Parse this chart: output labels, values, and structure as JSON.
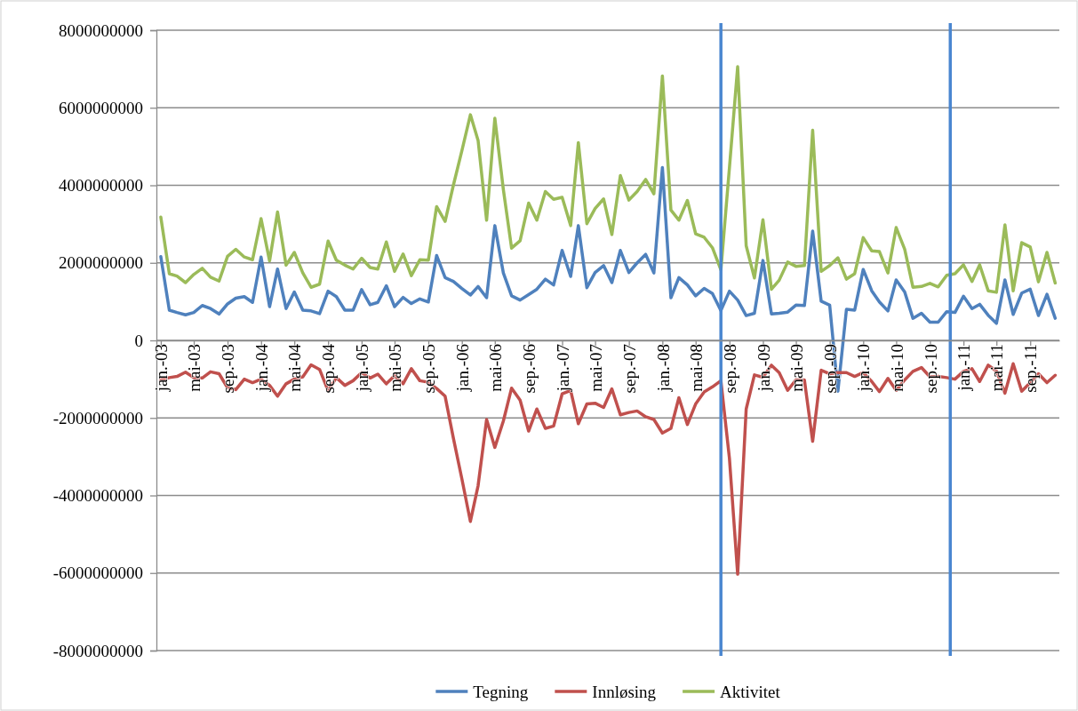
{
  "chart_data": {
    "type": "line",
    "x": [
      "2003-01",
      "2003-02",
      "2003-03",
      "2003-04",
      "2003-05",
      "2003-06",
      "2003-07",
      "2003-08",
      "2003-09",
      "2003-10",
      "2003-11",
      "2003-12",
      "2004-01",
      "2004-02",
      "2004-03",
      "2004-04",
      "2004-05",
      "2004-06",
      "2004-07",
      "2004-08",
      "2004-09",
      "2004-10",
      "2004-11",
      "2004-12",
      "2005-01",
      "2005-02",
      "2005-03",
      "2005-04",
      "2005-05",
      "2005-06",
      "2005-07",
      "2005-08",
      "2005-09",
      "2005-10",
      "2005-11",
      "2005-12",
      "2006-01",
      "2006-02",
      "2006-03",
      "2006-04",
      "2006-05",
      "2006-06",
      "2006-07",
      "2006-08",
      "2006-09",
      "2006-10",
      "2006-11",
      "2006-12",
      "2007-01",
      "2007-02",
      "2007-03",
      "2007-04",
      "2007-05",
      "2007-06",
      "2007-07",
      "2007-08",
      "2007-09",
      "2007-10",
      "2007-11",
      "2007-12",
      "2008-01",
      "2008-02",
      "2008-03",
      "2008-04",
      "2008-05",
      "2008-06",
      "2008-07",
      "2008-08",
      "2008-09",
      "2008-10",
      "2008-11",
      "2008-12",
      "2009-01",
      "2009-02",
      "2009-03",
      "2009-04",
      "2009-05",
      "2009-06",
      "2009-07",
      "2009-08",
      "2009-09",
      "2009-10",
      "2009-11",
      "2009-12",
      "2010-01",
      "2010-02",
      "2010-03",
      "2010-04",
      "2010-05",
      "2010-06",
      "2010-07",
      "2010-08",
      "2010-09",
      "2010-10",
      "2010-11",
      "2010-12",
      "2011-01",
      "2011-02",
      "2011-03",
      "2011-04",
      "2011-05",
      "2011-06",
      "2011-07",
      "2011-08",
      "2011-09",
      "2011-10",
      "2011-11",
      "2011-12"
    ],
    "series": [
      {
        "name": "Tegning",
        "color": "#4f81bd",
        "values": [
          2160000000.0,
          780000000.0,
          720000000.0,
          660000000.0,
          720000000.0,
          900000000.0,
          820000000.0,
          680000000.0,
          940000000.0,
          1090000000.0,
          1130000000.0,
          980000000.0,
          2150000000.0,
          870000000.0,
          1840000000.0,
          820000000.0,
          1250000000.0,
          780000000.0,
          760000000.0,
          690000000.0,
          1270000000.0,
          1130000000.0,
          780000000.0,
          780000000.0,
          1310000000.0,
          920000000.0,
          980000000.0,
          1410000000.0,
          870000000.0,
          1110000000.0,
          950000000.0,
          1070000000.0,
          990000000.0,
          2190000000.0,
          1620000000.0,
          1520000000.0,
          1340000000.0,
          1170000000.0,
          1390000000.0,
          1100000000.0,
          2960000000.0,
          1740000000.0,
          1150000000.0,
          1040000000.0,
          1180000000.0,
          1320000000.0,
          1580000000.0,
          1430000000.0,
          2320000000.0,
          1650000000.0,
          2960000000.0,
          1360000000.0,
          1750000000.0,
          1930000000.0,
          1490000000.0,
          2320000000.0,
          1750000000.0,
          2000000000.0,
          2220000000.0,
          1740000000.0,
          4460000000.0,
          1100000000.0,
          1620000000.0,
          1430000000.0,
          1150000000.0,
          1340000000.0,
          1210000000.0,
          770000000.0,
          1270000000.0,
          1040000000.0,
          640000000.0,
          700000000.0,
          2060000000.0,
          680000000.0,
          700000000.0,
          730000000.0,
          910000000.0,
          900000000.0,
          2820000000.0,
          1010000000.0,
          910000000.0,
          -1310000000.0,
          800000000.0,
          780000000.0,
          1830000000.0,
          1280000000.0,
          990000000.0,
          760000000.0,
          1560000000.0,
          1250000000.0,
          570000000.0,
          700000000.0,
          470000000.0,
          470000000.0,
          740000000.0,
          720000000.0,
          1140000000.0,
          820000000.0,
          930000000.0,
          650000000.0,
          440000000.0,
          1560000000.0,
          670000000.0,
          1220000000.0,
          1320000000.0,
          640000000.0,
          1190000000.0,
          570000000.0
        ]
      },
      {
        "name": "Innløsing",
        "color": "#c0504d",
        "values": [
          -1020000000.0,
          -960000000.0,
          -930000000.0,
          -820000000.0,
          -960000000.0,
          -970000000.0,
          -810000000.0,
          -860000000.0,
          -1220000000.0,
          -1270000000.0,
          -1000000000.0,
          -1090000000.0,
          -1000000000.0,
          -1160000000.0,
          -1440000000.0,
          -1120000000.0,
          -1000000000.0,
          -940000000.0,
          -630000000.0,
          -750000000.0,
          -1300000000.0,
          -960000000.0,
          -1160000000.0,
          -1040000000.0,
          -830000000.0,
          -970000000.0,
          -870000000.0,
          -1120000000.0,
          -910000000.0,
          -1120000000.0,
          -730000000.0,
          -1040000000.0,
          -1080000000.0,
          -1240000000.0,
          -1440000000.0,
          -2520000000.0,
          -3570000000.0,
          -4670000000.0,
          -3750000000.0,
          -2040000000.0,
          -2760000000.0,
          -2080000000.0,
          -1230000000.0,
          -1540000000.0,
          -2340000000.0,
          -1770000000.0,
          -2270000000.0,
          -2210000000.0,
          -1380000000.0,
          -1290000000.0,
          -2150000000.0,
          -1640000000.0,
          -1620000000.0,
          -1730000000.0,
          -1250000000.0,
          -1920000000.0,
          -1860000000.0,
          -1820000000.0,
          -1970000000.0,
          -2040000000.0,
          -2390000000.0,
          -2270000000.0,
          -1480000000.0,
          -2170000000.0,
          -1640000000.0,
          -1330000000.0,
          -1200000000.0,
          -1040000000.0,
          -3040000000.0,
          -6030000000.0,
          -1770000000.0,
          -890000000.0,
          -950000000.0,
          -640000000.0,
          -830000000.0,
          -1290000000.0,
          -1020000000.0,
          -1020000000.0,
          -2600000000.0,
          -770000000.0,
          -860000000.0,
          -830000000.0,
          -830000000.0,
          -930000000.0,
          -830000000.0,
          -1060000000.0,
          -1320000000.0,
          -980000000.0,
          -1290000000.0,
          -1020000000.0,
          -800000000.0,
          -700000000.0,
          -940000000.0,
          -930000000.0,
          -960000000.0,
          -1000000000.0,
          -800000000.0,
          -730000000.0,
          -1060000000.0,
          -640000000.0,
          -790000000.0,
          -1360000000.0,
          -600000000.0,
          -1310000000.0,
          -1090000000.0,
          -860000000.0,
          -1090000000.0,
          -900000000.0
        ]
      },
      {
        "name": "Aktivitet",
        "color": "#9bbb59",
        "values": [
          3180000000.0,
          1720000000.0,
          1660000000.0,
          1490000000.0,
          1700000000.0,
          1860000000.0,
          1630000000.0,
          1530000000.0,
          2170000000.0,
          2350000000.0,
          2150000000.0,
          2080000000.0,
          3140000000.0,
          2050000000.0,
          3310000000.0,
          1940000000.0,
          2270000000.0,
          1740000000.0,
          1370000000.0,
          1450000000.0,
          2560000000.0,
          2070000000.0,
          1940000000.0,
          1840000000.0,
          2120000000.0,
          1880000000.0,
          1840000000.0,
          2540000000.0,
          1780000000.0,
          2230000000.0,
          1670000000.0,
          2080000000.0,
          2070000000.0,
          3450000000.0,
          3070000000.0,
          4000000000.0,
          4890000000.0,
          5820000000.0,
          5160000000.0,
          3100000000.0,
          5730000000.0,
          3890000000.0,
          2380000000.0,
          2570000000.0,
          3540000000.0,
          3100000000.0,
          3840000000.0,
          3640000000.0,
          3690000000.0,
          2960000000.0,
          5100000000.0,
          3010000000.0,
          3400000000.0,
          3650000000.0,
          2730000000.0,
          4250000000.0,
          3620000000.0,
          3840000000.0,
          4150000000.0,
          3780000000.0,
          6820000000.0,
          3360000000.0,
          3100000000.0,
          3610000000.0,
          2750000000.0,
          2660000000.0,
          2390000000.0,
          1820000000.0,
          4450000000.0,
          7060000000.0,
          2440000000.0,
          1610000000.0,
          3110000000.0,
          1320000000.0,
          1550000000.0,
          2020000000.0,
          1910000000.0,
          1930000000.0,
          5420000000.0,
          1780000000.0,
          1930000000.0,
          2130000000.0,
          1580000000.0,
          1720000000.0,
          2650000000.0,
          2310000000.0,
          2290000000.0,
          1740000000.0,
          2910000000.0,
          2350000000.0,
          1370000000.0,
          1390000000.0,
          1470000000.0,
          1380000000.0,
          1680000000.0,
          1720000000.0,
          1950000000.0,
          1520000000.0,
          1950000000.0,
          1280000000.0,
          1240000000.0,
          2980000000.0,
          1280000000.0,
          2520000000.0,
          2410000000.0,
          1510000000.0,
          2270000000.0,
          1480000000.0
        ]
      }
    ],
    "xlim": [
      "2002-12-16",
      "2011-12-16"
    ],
    "xticks": [
      {
        "value": "2003-01",
        "label": "jan.-03"
      },
      {
        "value": "2003-05",
        "label": "mai-03"
      },
      {
        "value": "2003-09",
        "label": "sep.-03"
      },
      {
        "value": "2004-01",
        "label": "jan.-04"
      },
      {
        "value": "2004-05",
        "label": "mai-04"
      },
      {
        "value": "2004-09",
        "label": "sep.-04"
      },
      {
        "value": "2005-01",
        "label": "jan.-05"
      },
      {
        "value": "2005-05",
        "label": "mai-05"
      },
      {
        "value": "2005-09",
        "label": "sep.-05"
      },
      {
        "value": "2006-01",
        "label": "jan.-06"
      },
      {
        "value": "2006-05",
        "label": "mai-06"
      },
      {
        "value": "2006-09",
        "label": "sep.-06"
      },
      {
        "value": "2007-01",
        "label": "jan.-07"
      },
      {
        "value": "2007-05",
        "label": "mai-07"
      },
      {
        "value": "2007-09",
        "label": "sep.-07"
      },
      {
        "value": "2008-01",
        "label": "jan.-08"
      },
      {
        "value": "2008-05",
        "label": "mai-08"
      },
      {
        "value": "2008-09",
        "label": "sep.-08"
      },
      {
        "value": "2009-01",
        "label": "jan.-09"
      },
      {
        "value": "2009-05",
        "label": "mai-09"
      },
      {
        "value": "2009-09",
        "label": "sep.-09"
      },
      {
        "value": "2010-01",
        "label": "jan.-10"
      },
      {
        "value": "2010-05",
        "label": "mai-10"
      },
      {
        "value": "2010-09",
        "label": "sep.-10"
      },
      {
        "value": "2011-01",
        "label": "jan.-11"
      },
      {
        "value": "2011-05",
        "label": "mai-11"
      },
      {
        "value": "2011-09",
        "label": "sep.-11"
      }
    ],
    "ylim": [
      -8000000000,
      8000000000
    ],
    "yticks": [
      -8000000000,
      -6000000000,
      -4000000000,
      -2000000000,
      0,
      2000000000,
      4000000000,
      6000000000,
      8000000000
    ],
    "ref_lines": [
      {
        "axis": "x",
        "value": "2008-08",
        "color": "#4a86d0"
      },
      {
        "axis": "x",
        "value": "2010-11-14",
        "color": "#4a86d0"
      }
    ],
    "grid": "y",
    "legend": "bottom"
  }
}
